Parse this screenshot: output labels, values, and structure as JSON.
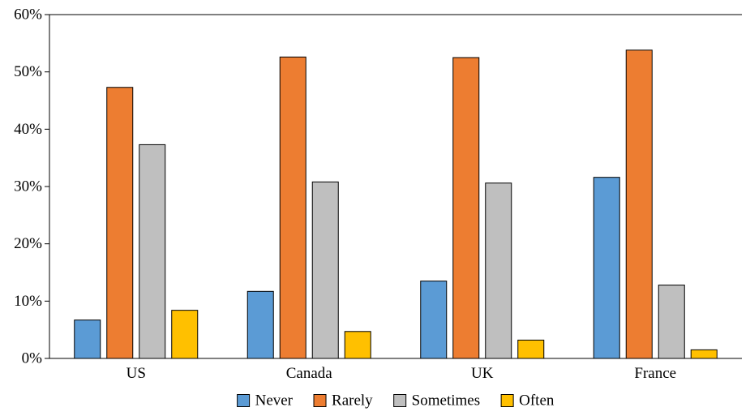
{
  "chart_data": {
    "type": "bar",
    "title": "",
    "xlabel": "",
    "ylabel": "",
    "categories": [
      "US",
      "Canada",
      "UK",
      "France"
    ],
    "series": [
      {
        "name": "Never",
        "color": "#5b9bd5",
        "values": [
          6.7,
          11.7,
          13.5,
          31.6
        ]
      },
      {
        "name": "Rarely",
        "color": "#ed7d31",
        "values": [
          47.3,
          52.6,
          52.5,
          53.8
        ]
      },
      {
        "name": "Sometimes",
        "color": "#bfbfbf",
        "values": [
          37.3,
          30.8,
          30.6,
          12.8
        ]
      },
      {
        "name": "Often",
        "color": "#ffc000",
        "values": [
          8.4,
          4.7,
          3.2,
          1.5
        ]
      }
    ],
    "ylim": [
      0,
      60
    ],
    "yticks": [
      0,
      10,
      20,
      30,
      40,
      50,
      60
    ],
    "ytick_labels": [
      "0%",
      "10%",
      "20%",
      "30%",
      "40%",
      "50%",
      "60%"
    ],
    "y_unit": "%",
    "legend_position": "bottom",
    "grid": false,
    "edge_color": "#000000"
  }
}
